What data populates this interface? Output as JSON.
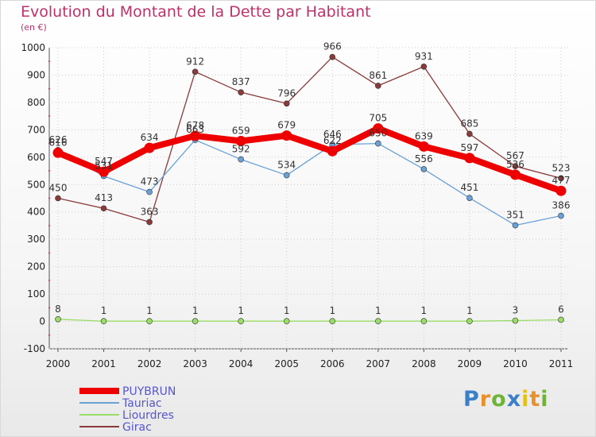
{
  "title": "Evolution du Montant de la Dette par Habitant",
  "subtitle": "(en €)",
  "brand": {
    "letters": [
      "P",
      "r",
      "o",
      "x",
      "i",
      "t",
      "i"
    ],
    "colors": [
      "#3b7fc9",
      "#e8902a",
      "#6fb33b",
      "#3b7fc9",
      "#e2c21a",
      "#e8902a",
      "#6fb33b"
    ]
  },
  "chart_data": {
    "type": "line",
    "x": [
      "2000",
      "2001",
      "2002",
      "2003",
      "2004",
      "2005",
      "2006",
      "2007",
      "2008",
      "2009",
      "2010",
      "2011"
    ],
    "ylim": [
      -100,
      1000
    ],
    "yticks": [
      -100,
      0,
      100,
      200,
      300,
      400,
      500,
      600,
      700,
      800,
      900,
      1000
    ],
    "ytick_labels": [
      "-100",
      "0",
      "100",
      "200",
      "300",
      "400",
      "500",
      "600",
      "700",
      "800",
      "900",
      "1000"
    ],
    "legend_position": "bottom-left",
    "series": [
      {
        "name": "PUYBRUN",
        "color": "#ee0000",
        "width": 8,
        "marker": 6.5,
        "values": [
          616,
          547,
          634,
          678,
          659,
          679,
          622,
          705,
          639,
          597,
          536,
          477
        ],
        "labels": [
          "616",
          "547",
          "634",
          "678",
          "659",
          "679",
          "622",
          "705",
          "639",
          "597",
          "536",
          "477"
        ]
      },
      {
        "name": "Tauriac",
        "color": "#6aa1d6",
        "width": 1.3,
        "marker": 3.5,
        "values": [
          626,
          531,
          473,
          663,
          592,
          534,
          646,
          650,
          556,
          451,
          351,
          386
        ],
        "labels": [
          "626",
          "531",
          "473",
          "663",
          "592",
          "534",
          "646",
          "650",
          "556",
          "451",
          "351",
          "386"
        ]
      },
      {
        "name": "Liourdres",
        "color": "#99dd66",
        "width": 1.3,
        "marker": 3.5,
        "values": [
          8,
          1,
          1,
          1,
          1,
          1,
          1,
          1,
          1,
          1,
          3,
          6
        ],
        "labels": [
          "8",
          "1",
          "1",
          "1",
          "1",
          "1",
          "1",
          "1",
          "1",
          "1",
          "3",
          "6"
        ]
      },
      {
        "name": "Girac",
        "color": "#8a3a3a",
        "width": 1.3,
        "marker": 3.5,
        "values": [
          450,
          413,
          363,
          912,
          837,
          796,
          966,
          861,
          931,
          685,
          567,
          523
        ],
        "labels": [
          "450",
          "413",
          "363",
          "912",
          "837",
          "796",
          "966",
          "861",
          "931",
          "685",
          "567",
          "523"
        ]
      }
    ]
  }
}
